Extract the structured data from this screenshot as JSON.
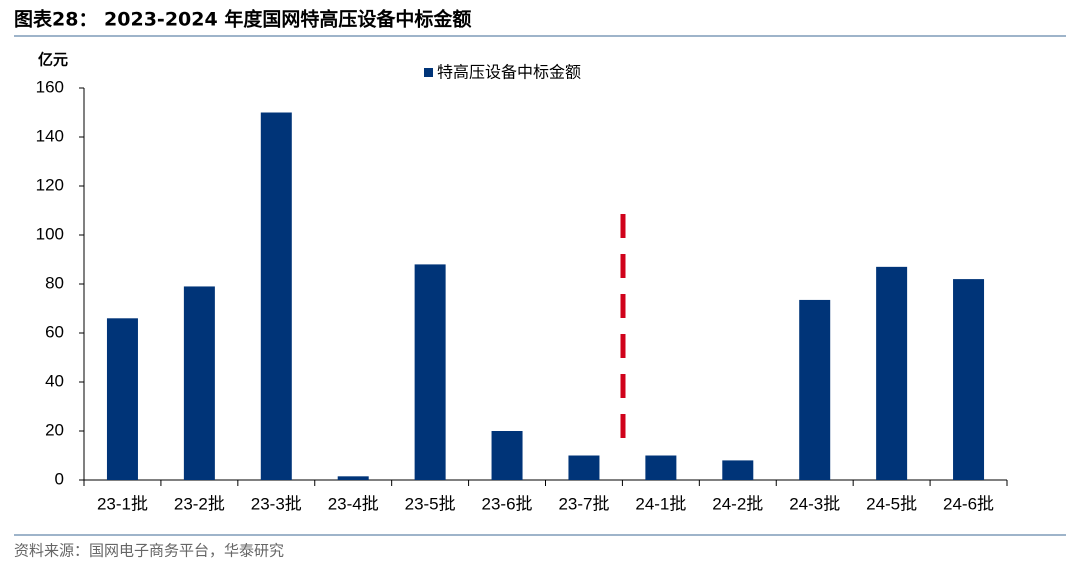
{
  "chart_data": {
    "type": "bar",
    "title": "图表28： 2023-2024 年度国网特高压设备中标金额",
    "y_label": "亿元",
    "source": "资料来源：国网电子商务平台，华泰研究",
    "categories": [
      "23-1批",
      "23-2批",
      "23-3批",
      "23-4批",
      "23-5批",
      "23-6批",
      "23-7批",
      "24-1批",
      "24-2批",
      "24-3批",
      "24-5批",
      "24-6批"
    ],
    "series": [
      {
        "name": "特高压设备中标金额",
        "color": "#003478",
        "values": [
          66,
          79,
          150,
          1.5,
          88,
          20,
          10,
          10,
          8,
          73.5,
          87,
          82
        ]
      }
    ],
    "ylim": [
      0,
      160
    ],
    "yticks": [
      0,
      20,
      40,
      60,
      80,
      100,
      120,
      140,
      160
    ],
    "grid": false,
    "legend": "top"
  }
}
